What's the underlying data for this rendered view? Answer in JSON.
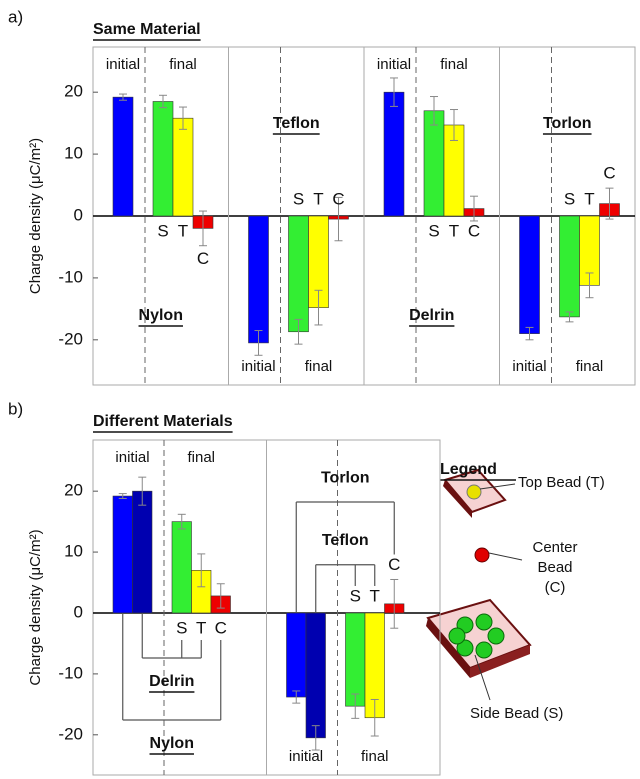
{
  "chart_data": [
    {
      "type": "bar",
      "label": "a)",
      "title": "Same Material",
      "ylabel": "Charge density (μC/m²)",
      "ylim": [
        -27.3,
        27.3
      ],
      "yticks": [
        -20,
        -10,
        0,
        10,
        20
      ],
      "phase_labels": [
        "initial",
        "final"
      ],
      "bar_labels": [
        "S",
        "T",
        "C"
      ],
      "colors": [
        "#0000ff",
        "#33ee33",
        "#ffff00",
        "#ee0000"
      ],
      "groups": [
        {
          "name": "Nylon",
          "values": [
            19.2,
            18.5,
            15.8,
            -2.0
          ],
          "errors": [
            0.5,
            1.0,
            1.8,
            2.8
          ]
        },
        {
          "name": "Teflon",
          "values": [
            -20.5,
            -18.7,
            -14.8,
            -0.5
          ],
          "errors": [
            2.0,
            2.0,
            2.8,
            3.5
          ]
        },
        {
          "name": "Delrin",
          "values": [
            20.0,
            17.0,
            14.7,
            1.2
          ],
          "errors": [
            2.3,
            2.3,
            2.5,
            2.0
          ]
        },
        {
          "name": "Torlon",
          "values": [
            -19.0,
            -16.3,
            -11.2,
            2.0
          ],
          "errors": [
            1.0,
            0.8,
            2.0,
            2.5
          ]
        }
      ]
    },
    {
      "type": "bar",
      "label": "b)",
      "title": "Different Materials",
      "ylabel": "Charge density (μC/m²)",
      "ylim": [
        -26.6,
        28.4
      ],
      "yticks": [
        -20,
        -10,
        0,
        10,
        20
      ],
      "phase_labels": [
        "initial",
        "final"
      ],
      "bar_labels": [
        "S",
        "T",
        "C"
      ],
      "colors": [
        "#0000ff",
        "#0000b0",
        "#33ee33",
        "#ffff00",
        "#ee0000"
      ],
      "groups": [
        {
          "bracket_labels": [
            "Delrin",
            "Nylon"
          ],
          "values": [
            19.2,
            20.0,
            15.0,
            7.0,
            2.8
          ],
          "errors": [
            0.4,
            2.3,
            1.2,
            2.7,
            2.0
          ]
        },
        {
          "bracket_labels": [
            "Teflon",
            "Torlon"
          ],
          "values": [
            -13.8,
            -20.5,
            -15.3,
            -17.2,
            1.5
          ],
          "errors": [
            1.0,
            2.0,
            2.0,
            3.0,
            4.0
          ]
        }
      ],
      "legend": {
        "title": "Legend",
        "top": "Top Bead (T)",
        "center": [
          "Center",
          "Bead",
          "(C)"
        ],
        "side": "Side Bead (S)"
      }
    }
  ]
}
